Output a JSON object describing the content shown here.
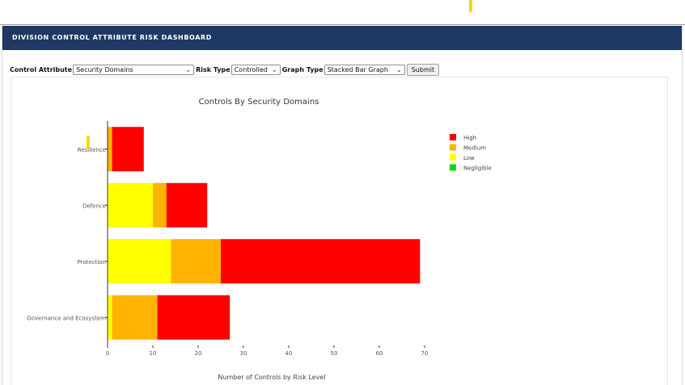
{
  "header": {
    "title": "DIVISION CONTROL ATTRIBUTE RISK DASHBOARD"
  },
  "controls": {
    "control_attribute_label": "Control Attribute",
    "control_attribute_value": "Security Domains",
    "risk_type_label": "Risk Type",
    "risk_type_value": "Controlled",
    "graph_type_label": "Graph Type",
    "graph_type_value": "Stacked Bar Graph",
    "submit_label": "Submit"
  },
  "chart_data": {
    "type": "bar",
    "orientation": "horizontal",
    "stacked": true,
    "title": "Controls By Security Domains",
    "xlabel": "Number of Controls by Risk Level",
    "ylabel": "",
    "xlim": [
      0,
      70
    ],
    "xticks": [
      0,
      10,
      20,
      30,
      40,
      50,
      60,
      70
    ],
    "categories": [
      "Resilience",
      "Defence",
      "Protection",
      "Governance and Ecosystem"
    ],
    "series": [
      {
        "name": "Negligible",
        "color": "#00dd00",
        "values": [
          0,
          0,
          0,
          0
        ]
      },
      {
        "name": "Low",
        "color": "#ffff00",
        "values": [
          0,
          10,
          14,
          1
        ]
      },
      {
        "name": "Medium",
        "color": "#ffb300",
        "values": [
          1,
          3,
          11,
          10
        ]
      },
      {
        "name": "High",
        "color": "#ff0000",
        "values": [
          7,
          9,
          44,
          16
        ]
      }
    ],
    "legend_order": [
      "High",
      "Medium",
      "Low",
      "Negligible"
    ],
    "legend_position": "right",
    "grid": false
  }
}
